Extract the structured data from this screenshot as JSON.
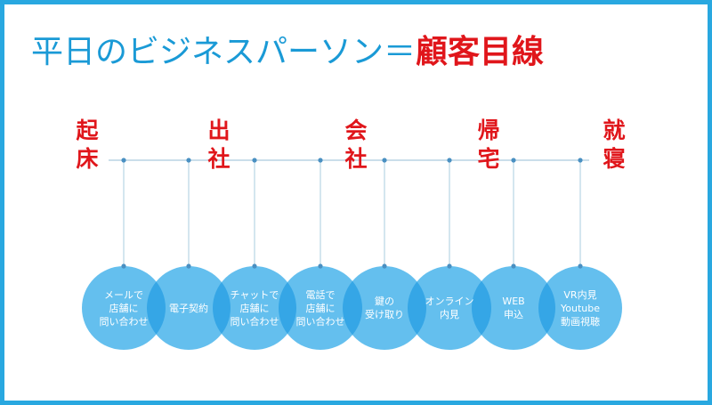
{
  "title": {
    "main": "平日のビジネスパーソン＝",
    "accent": "顧客目線"
  },
  "milestones": [
    {
      "line1": "起",
      "line2": "床"
    },
    {
      "line1": "出",
      "line2": "社"
    },
    {
      "line1": "会",
      "line2": "社"
    },
    {
      "line1": "帰",
      "line2": "宅"
    },
    {
      "line1": "就",
      "line2": "寝"
    }
  ],
  "touchpoints": [
    {
      "label": "メールで\n店舗に\n問い合わせ"
    },
    {
      "label": "電子契約"
    },
    {
      "label": "チャットで\n店舗に\n問い合わせ"
    },
    {
      "label": "電話で\n店舗に\n問い合わせ"
    },
    {
      "label": "鍵の\n受け取り"
    },
    {
      "label": "オンライン\n内見"
    },
    {
      "label": "WEB\n申込"
    },
    {
      "label": "VR内見\nYoutube\n動画視聴"
    }
  ],
  "colors": {
    "frame": "#29a8e0",
    "title_main": "#1a9ad6",
    "title_accent": "#e0161b",
    "milestone": "#e0161b",
    "bubble": "#64bfee",
    "bubble_overlap": "#35a6e6",
    "timeline": "#b8d4e4",
    "dot": "#4a90c2"
  }
}
